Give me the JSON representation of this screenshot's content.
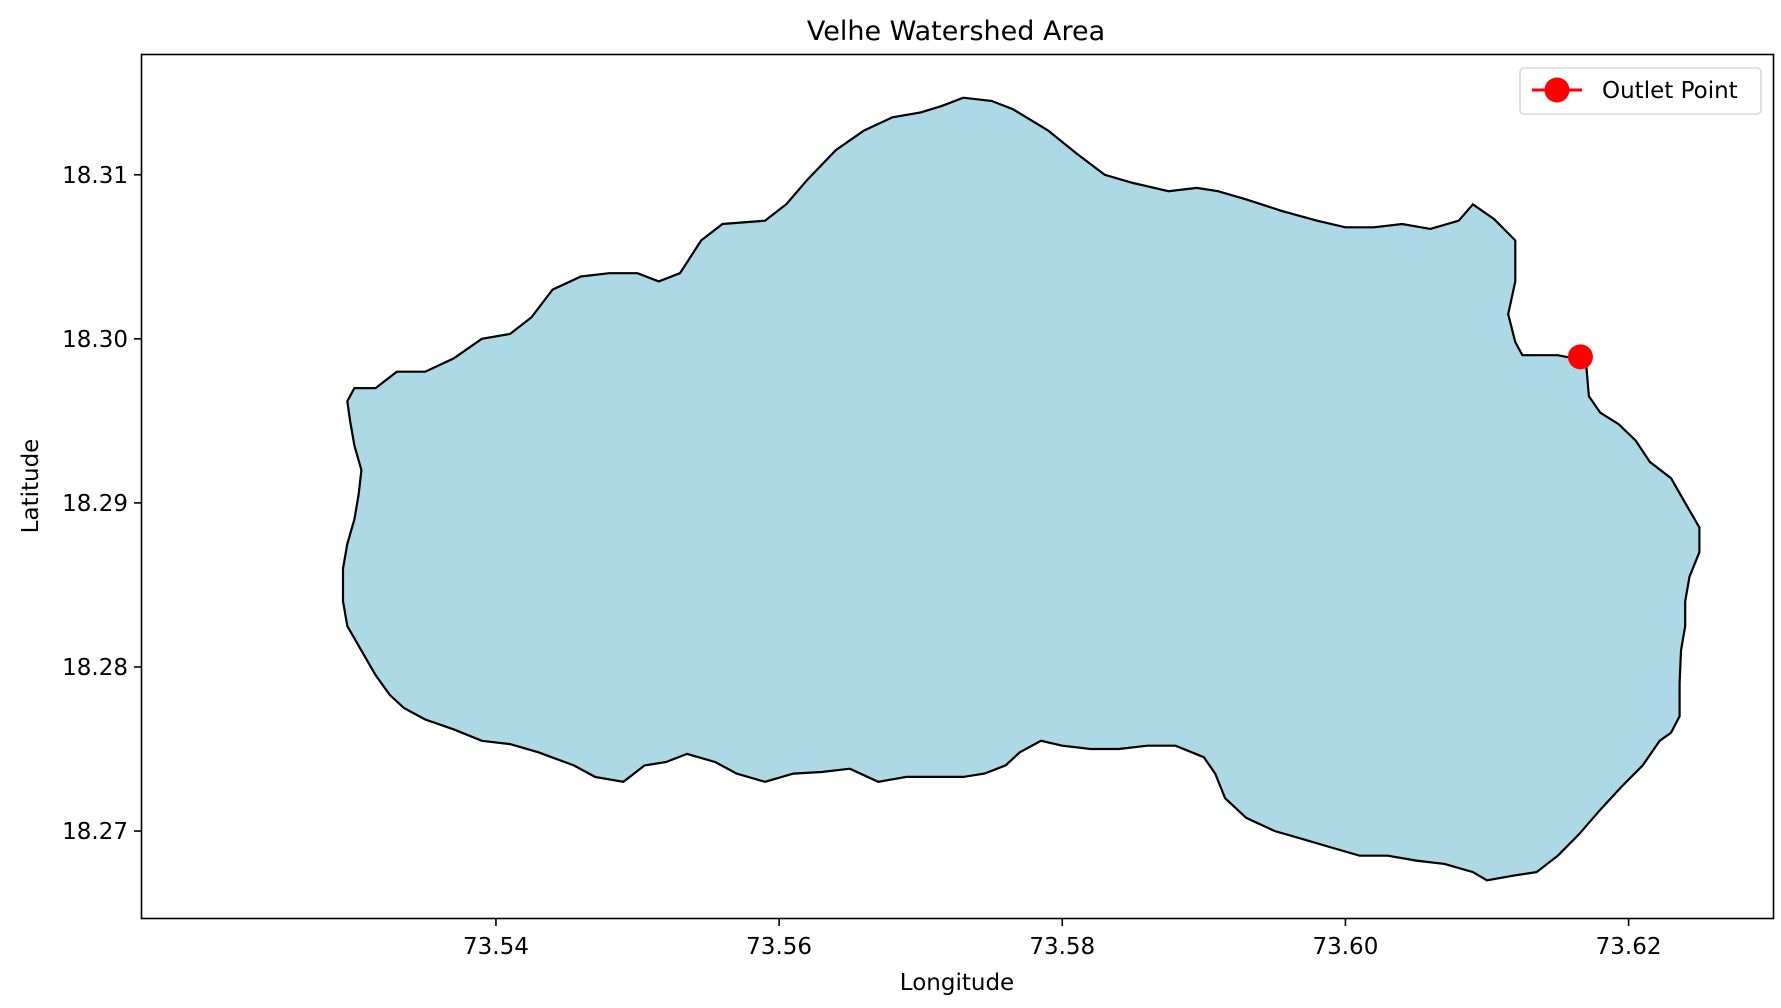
{
  "chart_data": {
    "type": "map",
    "title": "Velhe Watershed Area",
    "xlabel": "Longitude",
    "ylabel": "Latitude",
    "xlim": [
      73.515,
      73.6302
    ],
    "ylim": [
      18.2647,
      18.3173
    ],
    "xticks": [
      {
        "value": 73.54,
        "label": "73.54"
      },
      {
        "value": 73.56,
        "label": "73.56"
      },
      {
        "value": 73.58,
        "label": "73.58"
      },
      {
        "value": 73.6,
        "label": "73.60"
      },
      {
        "value": 73.62,
        "label": "73.62"
      }
    ],
    "yticks": [
      {
        "value": 18.27,
        "label": "18.27"
      },
      {
        "value": 18.28,
        "label": "18.28"
      },
      {
        "value": 18.29,
        "label": "18.29"
      },
      {
        "value": 18.3,
        "label": "18.30"
      },
      {
        "value": 18.31,
        "label": "18.31"
      }
    ],
    "grid": false,
    "legend": {
      "placement": "top-right",
      "entries": [
        {
          "label": "Outlet Point",
          "color": "#ff0000",
          "marker": "circle"
        }
      ]
    },
    "watershed": {
      "fill": "#add8e6",
      "edge": "#000000",
      "boundary": [
        [
          73.53,
          18.297
        ],
        [
          73.5315,
          18.297
        ],
        [
          73.533,
          18.298
        ],
        [
          73.535,
          18.298
        ],
        [
          73.537,
          18.2988
        ],
        [
          73.539,
          18.3
        ],
        [
          73.541,
          18.3003
        ],
        [
          73.5425,
          18.3013
        ],
        [
          73.544,
          18.303
        ],
        [
          73.546,
          18.3038
        ],
        [
          73.548,
          18.304
        ],
        [
          73.55,
          18.304
        ],
        [
          73.5515,
          18.3035
        ],
        [
          73.553,
          18.304
        ],
        [
          73.5545,
          18.306
        ],
        [
          73.556,
          18.307
        ],
        [
          73.559,
          18.3072
        ],
        [
          73.5605,
          18.3082
        ],
        [
          73.562,
          18.3097
        ],
        [
          73.564,
          18.3115
        ],
        [
          73.566,
          18.3127
        ],
        [
          73.568,
          18.3135
        ],
        [
          73.57,
          18.3138
        ],
        [
          73.5715,
          18.3142
        ],
        [
          73.573,
          18.3147
        ],
        [
          73.575,
          18.3145
        ],
        [
          73.5765,
          18.314
        ],
        [
          73.579,
          18.3127
        ],
        [
          73.581,
          18.3113
        ],
        [
          73.583,
          18.31
        ],
        [
          73.585,
          18.3095
        ],
        [
          73.5875,
          18.309
        ],
        [
          73.5895,
          18.3092
        ],
        [
          73.591,
          18.309
        ],
        [
          73.593,
          18.3085
        ],
        [
          73.5955,
          18.3078
        ],
        [
          73.598,
          18.3072
        ],
        [
          73.6,
          18.3068
        ],
        [
          73.602,
          18.3068
        ],
        [
          73.604,
          18.307
        ],
        [
          73.606,
          18.3067
        ],
        [
          73.608,
          18.3072
        ],
        [
          73.609,
          18.3082
        ],
        [
          73.6105,
          18.3073
        ],
        [
          73.612,
          18.306
        ],
        [
          73.612,
          18.3035
        ],
        [
          73.6115,
          18.3015
        ],
        [
          73.612,
          18.2998
        ],
        [
          73.6125,
          18.299
        ],
        [
          73.615,
          18.299
        ],
        [
          73.6162,
          18.2988
        ],
        [
          73.617,
          18.2985
        ],
        [
          73.6172,
          18.2965
        ],
        [
          73.618,
          18.2955
        ],
        [
          73.6193,
          18.2948
        ],
        [
          73.6205,
          18.2938
        ],
        [
          73.6215,
          18.2925
        ],
        [
          73.623,
          18.2915
        ],
        [
          73.624,
          18.29
        ],
        [
          73.625,
          18.2885
        ],
        [
          73.625,
          18.287
        ],
        [
          73.6243,
          18.2855
        ],
        [
          73.624,
          18.284
        ],
        [
          73.624,
          18.2825
        ],
        [
          73.6237,
          18.281
        ],
        [
          73.6236,
          18.279
        ],
        [
          73.6236,
          18.277
        ],
        [
          73.623,
          18.276
        ],
        [
          73.6222,
          18.2755
        ],
        [
          73.621,
          18.274
        ],
        [
          73.6195,
          18.2727
        ],
        [
          73.618,
          18.2713
        ],
        [
          73.6165,
          18.2698
        ],
        [
          73.615,
          18.2685
        ],
        [
          73.6135,
          18.2675
        ],
        [
          73.612,
          18.2673
        ],
        [
          73.61,
          18.267
        ],
        [
          73.609,
          18.2675
        ],
        [
          73.607,
          18.268
        ],
        [
          73.605,
          18.2682
        ],
        [
          73.603,
          18.2685
        ],
        [
          73.601,
          18.2685
        ],
        [
          73.599,
          18.269
        ],
        [
          73.597,
          18.2695
        ],
        [
          73.595,
          18.27
        ],
        [
          73.593,
          18.2708
        ],
        [
          73.5915,
          18.272
        ],
        [
          73.5908,
          18.2735
        ],
        [
          73.59,
          18.2745
        ],
        [
          73.588,
          18.2752
        ],
        [
          73.586,
          18.2752
        ],
        [
          73.584,
          18.275
        ],
        [
          73.582,
          18.275
        ],
        [
          73.58,
          18.2752
        ],
        [
          73.5785,
          18.2755
        ],
        [
          73.577,
          18.2748
        ],
        [
          73.576,
          18.274
        ],
        [
          73.5745,
          18.2735
        ],
        [
          73.573,
          18.2733
        ],
        [
          73.571,
          18.2733
        ],
        [
          73.569,
          18.2733
        ],
        [
          73.567,
          18.273
        ],
        [
          73.565,
          18.2738
        ],
        [
          73.563,
          18.2736
        ],
        [
          73.561,
          18.2735
        ],
        [
          73.559,
          18.273
        ],
        [
          73.557,
          18.2735
        ],
        [
          73.5555,
          18.2742
        ],
        [
          73.5535,
          18.2747
        ],
        [
          73.552,
          18.2742
        ],
        [
          73.5505,
          18.274
        ],
        [
          73.549,
          18.273
        ],
        [
          73.547,
          18.2733
        ],
        [
          73.5455,
          18.274
        ],
        [
          73.543,
          18.2748
        ],
        [
          73.541,
          18.2753
        ],
        [
          73.539,
          18.2755
        ],
        [
          73.537,
          18.2762
        ],
        [
          73.535,
          18.2768
        ],
        [
          73.5335,
          18.2775
        ],
        [
          73.5325,
          18.2783
        ],
        [
          73.5315,
          18.2795
        ],
        [
          73.5305,
          18.281
        ],
        [
          73.5295,
          18.2825
        ],
        [
          73.5292,
          18.284
        ],
        [
          73.5292,
          18.286
        ],
        [
          73.5295,
          18.2875
        ],
        [
          73.53,
          18.289
        ],
        [
          73.5303,
          18.2905
        ],
        [
          73.5305,
          18.292
        ],
        [
          73.53,
          18.2935
        ],
        [
          73.5297,
          18.295
        ],
        [
          73.5295,
          18.2962
        ],
        [
          73.53,
          18.297
        ]
      ]
    },
    "outlet_point": {
      "x": 73.6166,
      "y": 18.2989,
      "color": "#ff0000"
    }
  }
}
